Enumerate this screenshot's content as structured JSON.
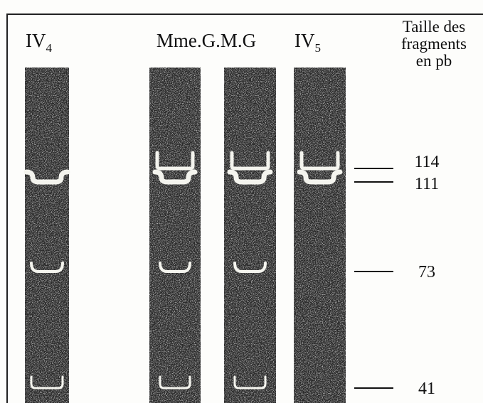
{
  "lanes": [
    {
      "label": "IV",
      "subscript": "4",
      "bands": [
        111,
        73,
        41
      ]
    },
    {
      "label": "Mme.G.M.G",
      "bands": [
        114,
        111,
        73,
        41
      ]
    },
    {
      "bands": [
        114,
        111,
        73,
        41
      ]
    },
    {
      "label": "IV",
      "subscript": "5",
      "bands": [
        114,
        111
      ]
    }
  ],
  "size_header": [
    "Taille des",
    "fragments",
    "en pb"
  ],
  "markers": [
    114,
    111,
    73,
    41
  ]
}
